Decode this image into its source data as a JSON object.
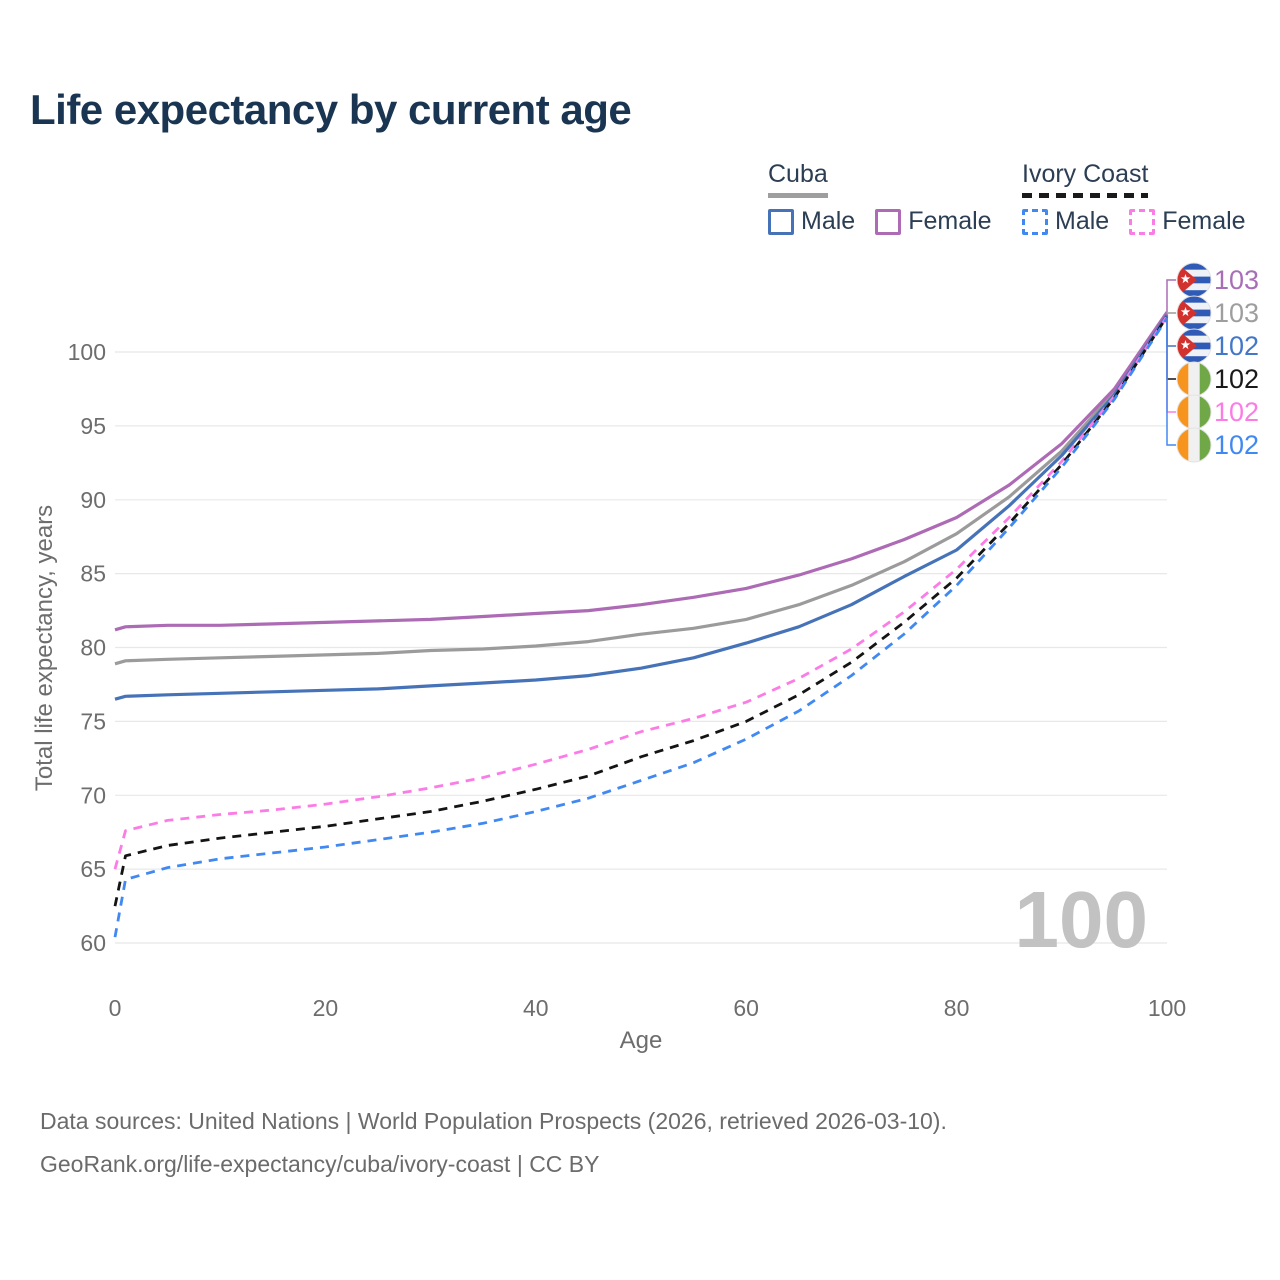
{
  "title": "Life expectancy by current age",
  "watermark": "100",
  "legend": {
    "groups": [
      {
        "label": "Cuba",
        "underline_color": "#9e9e9e",
        "underline_style": "solid",
        "items": [
          {
            "label": "Male",
            "color": "#4673b8",
            "dashed": false
          },
          {
            "label": "Female",
            "color": "#ad6bb5",
            "dashed": false
          }
        ]
      },
      {
        "label": "Ivory Coast",
        "underline_color": "#1a1a1a",
        "underline_style": "dashed",
        "items": [
          {
            "label": "Male",
            "color": "#4189f2",
            "dashed": true
          },
          {
            "label": "Female",
            "color": "#fc7ce6",
            "dashed": true
          }
        ]
      }
    ]
  },
  "footer": {
    "line1": "Data sources: United Nations | World Population Prospects (2026, retrieved 2026-03-10).",
    "line2": "GeoRank.org/life-expectancy/cuba/ivory-coast | CC BY"
  },
  "chart_data": {
    "type": "line",
    "title": "Life expectancy by current age",
    "xlabel": "Age",
    "ylabel": "Total life expectancy, years",
    "xlim": [
      0,
      100
    ],
    "ylim": [
      60,
      103
    ],
    "x_ticks": [
      0,
      20,
      40,
      60,
      80,
      100
    ],
    "y_ticks": [
      60,
      65,
      70,
      75,
      80,
      85,
      90,
      95,
      100
    ],
    "grid": true,
    "legend_position": "top-right",
    "x": [
      0,
      1,
      5,
      10,
      15,
      20,
      25,
      30,
      35,
      40,
      45,
      50,
      55,
      60,
      65,
      70,
      75,
      80,
      85,
      90,
      95,
      100
    ],
    "series": [
      {
        "name": "Cuba Female",
        "country": "Cuba",
        "sex": "Female",
        "color": "#ad6bb5",
        "dashed": false,
        "flag": "cuba",
        "end_label": "103",
        "label_color": "#a86fb8",
        "values": [
          81.2,
          81.4,
          81.5,
          81.5,
          81.6,
          81.7,
          81.8,
          81.9,
          82.1,
          82.3,
          82.5,
          82.9,
          83.4,
          84.0,
          84.9,
          86.0,
          87.3,
          88.8,
          91.0,
          93.8,
          97.5,
          102.7
        ]
      },
      {
        "name": "Cuba Both sexes",
        "country": "Cuba",
        "sex": "Both",
        "color": "#9b9b9b",
        "dashed": false,
        "flag": "cuba",
        "end_label": "103",
        "label_color": "#9e9e9e",
        "values": [
          78.9,
          79.1,
          79.2,
          79.3,
          79.4,
          79.5,
          79.6,
          79.8,
          79.9,
          80.1,
          80.4,
          80.9,
          81.3,
          81.9,
          82.9,
          84.2,
          85.8,
          87.7,
          90.2,
          93.3,
          97.3,
          102.6
        ]
      },
      {
        "name": "Cuba Male",
        "country": "Cuba",
        "sex": "Male",
        "color": "#4673b8",
        "dashed": false,
        "flag": "cuba",
        "end_label": "102",
        "label_color": "#4377c9",
        "values": [
          76.5,
          76.7,
          76.8,
          76.9,
          77.0,
          77.1,
          77.2,
          77.4,
          77.6,
          77.8,
          78.1,
          78.6,
          79.3,
          80.3,
          81.4,
          82.9,
          84.8,
          86.6,
          89.6,
          93.0,
          97.1,
          102.5
        ]
      },
      {
        "name": "Ivory Coast Both sexes",
        "country": "Ivory Coast",
        "sex": "Both",
        "color": "#141414",
        "dashed": true,
        "flag": "ivory-coast",
        "end_label": "102",
        "label_color": "#1a1a1a",
        "values": [
          62.5,
          65.9,
          66.6,
          67.1,
          67.5,
          67.9,
          68.4,
          68.9,
          69.6,
          70.4,
          71.3,
          72.6,
          73.7,
          75.0,
          76.8,
          79.0,
          81.7,
          84.7,
          88.4,
          92.4,
          96.9,
          102.4
        ]
      },
      {
        "name": "Ivory Coast Female",
        "country": "Ivory Coast",
        "sex": "Female",
        "color": "#fc7ce6",
        "dashed": true,
        "flag": "ivory-coast",
        "end_label": "102",
        "label_color": "#fc7ce6",
        "values": [
          65.0,
          67.6,
          68.3,
          68.7,
          69.0,
          69.4,
          69.9,
          70.5,
          71.2,
          72.1,
          73.1,
          74.3,
          75.2,
          76.3,
          77.9,
          79.9,
          82.4,
          85.3,
          88.8,
          92.6,
          97.0,
          102.4
        ]
      },
      {
        "name": "Ivory Coast Male",
        "country": "Ivory Coast",
        "sex": "Male",
        "color": "#4189f2",
        "dashed": true,
        "flag": "ivory-coast",
        "end_label": "102",
        "label_color": "#4189f2",
        "values": [
          60.4,
          64.3,
          65.1,
          65.7,
          66.1,
          66.5,
          67.0,
          67.5,
          68.1,
          68.9,
          69.8,
          71.0,
          72.2,
          73.8,
          75.7,
          78.1,
          80.9,
          84.2,
          88.1,
          92.2,
          96.8,
          102.3
        ]
      }
    ]
  }
}
